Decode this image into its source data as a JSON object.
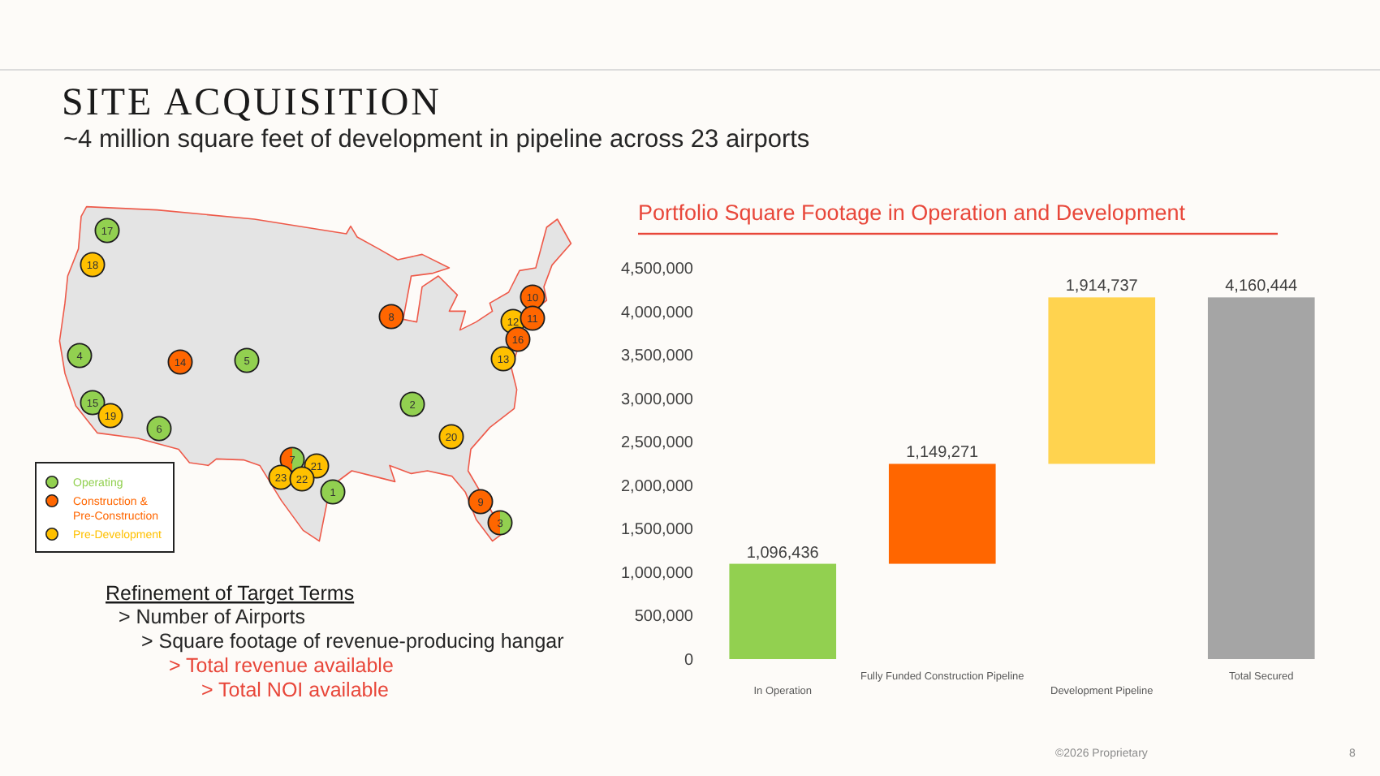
{
  "chart_data": [
    {
      "type": "other",
      "title": "SITE ACQUISITION",
      "subtitle": "~4 million square feet of development in pipeline across 23 airports",
      "annotations": [
        "©2026 Proprietary",
        "8"
      ]
    },
    {
      "type": "other",
      "categories": [
        "1",
        "2",
        "3",
        "4",
        "5",
        "6",
        "7",
        "8",
        "9",
        "10",
        "11",
        "12",
        "13",
        "14",
        "15",
        "16",
        "17",
        "18",
        "19",
        "20",
        "21",
        "22",
        "23"
      ],
      "colors": [
        "#92d050",
        "#92d050",
        [
          "#ff6600",
          "#92d050"
        ],
        "#92d050",
        "#92d050",
        "#92d050",
        [
          "#ff6600",
          "#92d050"
        ],
        "#ff6600",
        "#ff6600",
        "#ff6600",
        "#ff6600",
        "#ffc000",
        "#ffc000",
        "#ff6600",
        "#92d050",
        "#ff6600",
        "#92d050",
        "#ffc000",
        "#ffc000",
        "#ffc000",
        "#ffc000",
        "#ffc000",
        "#ffc000"
      ]
    },
    {
      "type": "other",
      "categories": [
        "Operating",
        "Construction & Pre-Construction",
        "Pre-Development"
      ],
      "colors": [
        "#92d050",
        "#ff6600",
        "#ffc000"
      ]
    },
    {
      "type": "other",
      "title": "Refinement of Target Terms",
      "annotations": [
        "> Number of Airports",
        "> Square footage of revenue-producing hangar",
        "> Total revenue available",
        "> Total NOI available"
      ],
      "colors": [
        "#262626",
        "#262626",
        "#e8473a",
        "#e8473a"
      ]
    },
    {
      "type": "bar",
      "title": "Portfolio Square Footage in Operation and Development",
      "categories": [
        "In Operation",
        "Fully Funded Construction Pipeline",
        "Development Pipeline",
        "Total Secured"
      ],
      "values": [
        1096436,
        1149271,
        1914737,
        4160444
      ],
      "base": [
        0,
        1096436,
        2245707,
        0
      ],
      "colors": [
        "#92d050",
        "#ff6600",
        "#ffd34f",
        "#a5a5a5"
      ],
      "ylim": [
        0,
        4500000
      ],
      "yticks": [
        0,
        {
          "value": 500000,
          "label": "500,000"
        },
        {
          "value": 1000000,
          "label": "1,000,000"
        },
        {
          "value": 1500000,
          "label": "1,500,000"
        },
        {
          "value": 2000000,
          "label": "2,000,000"
        },
        {
          "value": 2500000,
          "label": "2,500,000"
        },
        {
          "value": 3000000,
          "label": "3,000,000"
        },
        {
          "value": 3500000,
          "label": "3,500,000"
        },
        {
          "value": 4000000,
          "label": "4,000,000"
        },
        {
          "value": 4500000,
          "label": "4,500,000"
        }
      ],
      "value_labels": [
        "1,096,436",
        "1,149,271",
        "1,914,737",
        "4,160,444"
      ]
    }
  ]
}
